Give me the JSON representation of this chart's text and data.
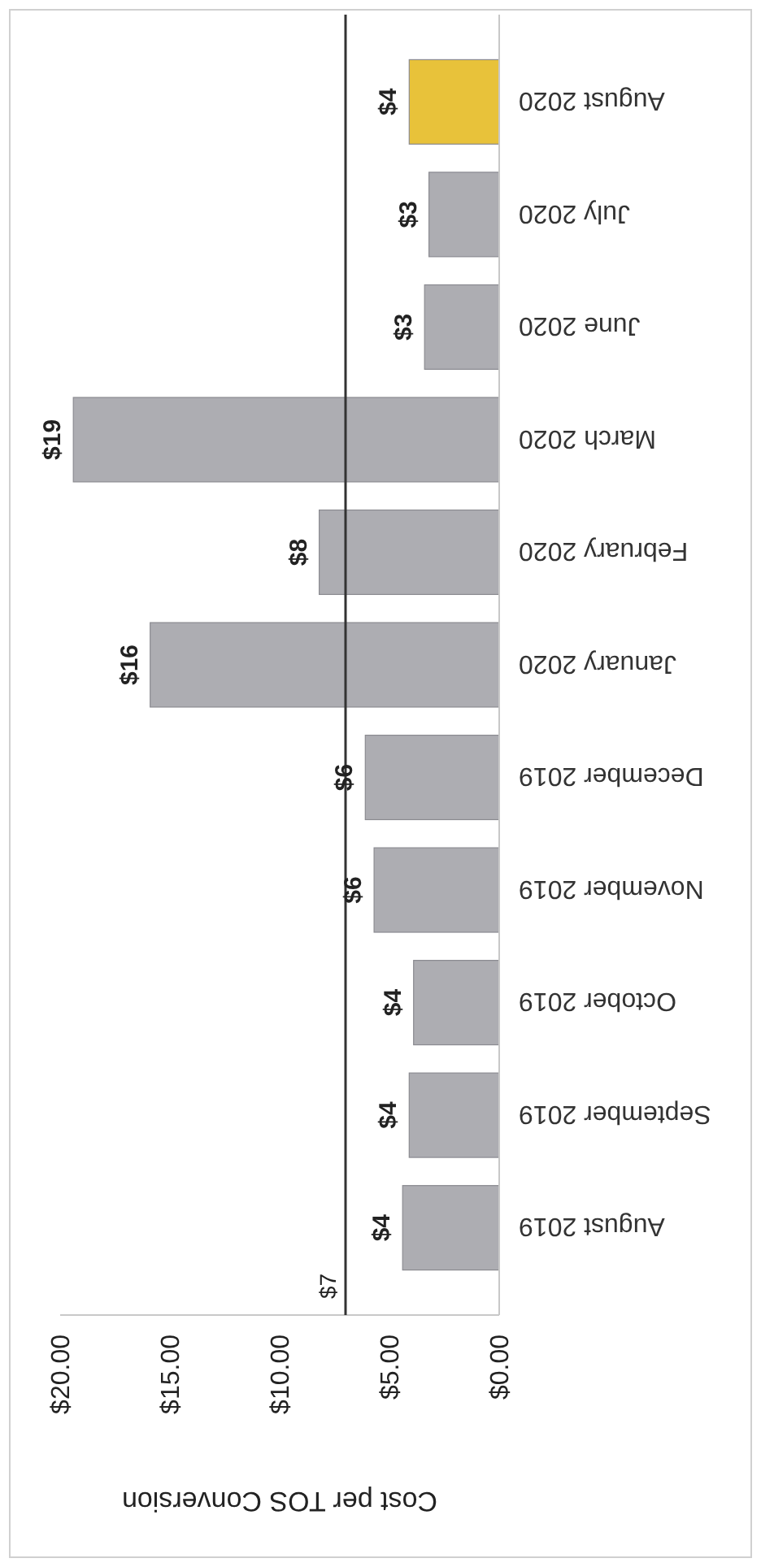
{
  "chart_data": {
    "type": "bar",
    "orientation": "horizontal",
    "xlabel": "Cost per TOS Conversion",
    "categories": [
      "August 2020",
      "July 2020",
      "June 2020",
      "March 2020",
      "February 2020",
      "January 2020",
      "December 2019",
      "November 2019",
      "October 2019",
      "September 2019",
      "August 2019"
    ],
    "values": [
      4.1,
      3.2,
      3.4,
      19.4,
      8.2,
      15.9,
      6.1,
      5.7,
      3.9,
      4.1,
      4.4
    ],
    "colors": [
      "#e8c23a",
      "#adadb2",
      "#adadb2",
      "#adadb2",
      "#adadb2",
      "#adadb2",
      "#adadb2",
      "#adadb2",
      "#adadb2",
      "#adadb2",
      "#adadb2"
    ],
    "value_labels": [
      "$4",
      "$3",
      "$3",
      "$19",
      "$8",
      "$16",
      "$6",
      "$6",
      "$4",
      "$4",
      "$4"
    ],
    "xlim": [
      20,
      0
    ],
    "xticks": [
      {
        "value": 20,
        "label": "$20.00"
      },
      {
        "value": 15,
        "label": "$15.00"
      },
      {
        "value": 10,
        "label": "$10.00"
      },
      {
        "value": 5,
        "label": "$5.00"
      },
      {
        "value": 0,
        "label": "$0.00"
      }
    ],
    "ref_lines": [
      {
        "axis": "x",
        "value": 7,
        "label": "$7",
        "color": "#333333"
      }
    ],
    "grid": false
  }
}
